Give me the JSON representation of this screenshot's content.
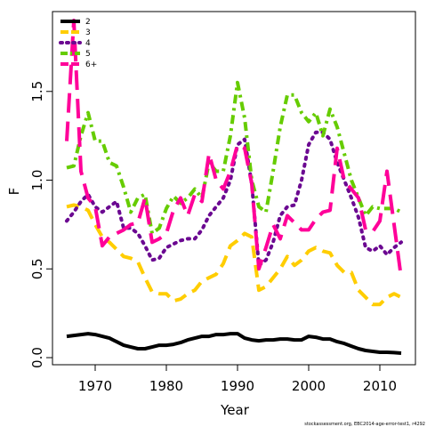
{
  "chart_data": {
    "type": "line",
    "title": "",
    "xlabel": "Year",
    "ylabel": "F",
    "xlim": [
      1964,
      2015
    ],
    "ylim": [
      -0.04,
      1.95
    ],
    "xticks": [
      1970,
      1980,
      1990,
      2000,
      2010
    ],
    "yticks": [
      0.0,
      0.5,
      1.0,
      1.5
    ],
    "ytick_labels": [
      "0.0",
      "0.5",
      "1.0",
      "1.5"
    ],
    "grid": false,
    "legend_position": "top-left",
    "credit": "stockassessment.org, EBC2014-age-error-test1, r4292",
    "x": [
      1966,
      1967,
      1968,
      1969,
      1970,
      1971,
      1972,
      1973,
      1974,
      1975,
      1976,
      1977,
      1978,
      1979,
      1980,
      1981,
      1982,
      1983,
      1984,
      1985,
      1986,
      1987,
      1988,
      1989,
      1990,
      1991,
      1992,
      1993,
      1994,
      1995,
      1996,
      1997,
      1998,
      1999,
      2000,
      2001,
      2002,
      2003,
      2004,
      2005,
      2006,
      2007,
      2008,
      2009,
      2010,
      2011,
      2012,
      2013
    ],
    "series": [
      {
        "name": "2",
        "color": "#000000",
        "dash": "solid",
        "values": [
          0.12,
          0.125,
          0.13,
          0.135,
          0.13,
          0.12,
          0.11,
          0.09,
          0.07,
          0.06,
          0.05,
          0.05,
          0.06,
          0.07,
          0.07,
          0.075,
          0.085,
          0.1,
          0.11,
          0.12,
          0.12,
          0.13,
          0.13,
          0.135,
          0.135,
          0.11,
          0.1,
          0.095,
          0.1,
          0.1,
          0.105,
          0.105,
          0.1,
          0.1,
          0.12,
          0.115,
          0.105,
          0.105,
          0.09,
          0.08,
          0.065,
          0.05,
          0.04,
          0.035,
          0.03,
          0.03,
          0.028,
          0.025
        ]
      },
      {
        "name": "3",
        "color": "#FFCD00",
        "dash": "long",
        "values": [
          0.85,
          0.86,
          0.85,
          0.83,
          0.75,
          0.68,
          0.65,
          0.61,
          0.57,
          0.56,
          0.54,
          0.45,
          0.37,
          0.36,
          0.36,
          0.32,
          0.33,
          0.36,
          0.38,
          0.43,
          0.45,
          0.47,
          0.53,
          0.63,
          0.66,
          0.7,
          0.68,
          0.38,
          0.4,
          0.45,
          0.5,
          0.57,
          0.52,
          0.55,
          0.6,
          0.62,
          0.6,
          0.59,
          0.52,
          0.48,
          0.48,
          0.38,
          0.34,
          0.3,
          0.3,
          0.34,
          0.36,
          0.34
        ]
      },
      {
        "name": "4",
        "color": "#6B0891",
        "dash": "dotted",
        "values": [
          0.77,
          0.82,
          0.88,
          0.92,
          0.85,
          0.82,
          0.85,
          0.88,
          0.73,
          0.73,
          0.7,
          0.63,
          0.55,
          0.56,
          0.62,
          0.64,
          0.66,
          0.67,
          0.67,
          0.72,
          0.8,
          0.85,
          0.9,
          1.0,
          1.2,
          1.23,
          0.98,
          0.52,
          0.55,
          0.65,
          0.8,
          0.85,
          0.86,
          1.0,
          1.2,
          1.27,
          1.27,
          1.23,
          1.1,
          1.0,
          0.9,
          0.79,
          0.62,
          0.6,
          0.63,
          0.58,
          0.62,
          0.65
        ]
      },
      {
        "name": "5",
        "color": "#66CC00",
        "dash": "dashdot",
        "values": [
          1.07,
          1.08,
          1.25,
          1.38,
          1.22,
          1.22,
          1.1,
          1.08,
          0.96,
          0.82,
          0.9,
          0.92,
          0.7,
          0.73,
          0.84,
          0.91,
          0.87,
          0.9,
          0.95,
          0.9,
          1.1,
          1.05,
          1.05,
          1.25,
          1.55,
          1.35,
          1.0,
          0.85,
          0.82,
          1.05,
          1.3,
          1.48,
          1.48,
          1.38,
          1.33,
          1.38,
          1.25,
          1.4,
          1.3,
          1.15,
          1.0,
          0.9,
          0.8,
          0.85,
          0.84,
          0.84,
          0.84,
          0.82
        ]
      },
      {
        "name": "6+",
        "color": "#FF0099",
        "dash": "longdash",
        "values": [
          1.22,
          1.9,
          1.05,
          0.9,
          0.85,
          0.63,
          0.68,
          0.7,
          0.72,
          0.75,
          0.76,
          0.9,
          0.65,
          0.67,
          0.7,
          0.83,
          0.9,
          0.8,
          0.92,
          0.88,
          1.15,
          1.0,
          0.95,
          1.05,
          1.2,
          1.18,
          0.98,
          0.5,
          0.62,
          0.75,
          0.67,
          0.8,
          0.76,
          0.72,
          0.72,
          0.78,
          0.82,
          0.83,
          1.18,
          1.0,
          0.95,
          0.9,
          0.72,
          0.71,
          0.77,
          1.05,
          0.75,
          0.45
        ]
      }
    ]
  }
}
